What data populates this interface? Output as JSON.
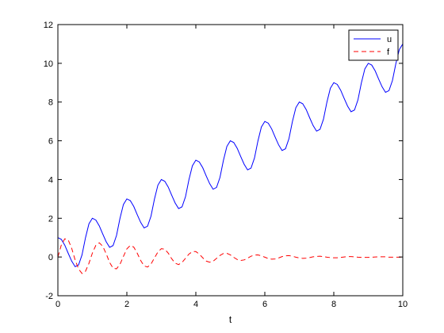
{
  "chart_data": {
    "type": "line",
    "title": "",
    "xlabel": "t",
    "ylabel": "",
    "xlim": [
      0,
      10
    ],
    "ylim": [
      -2,
      12
    ],
    "xticks": [
      0,
      2,
      4,
      6,
      8,
      10
    ],
    "yticks": [
      -2,
      0,
      2,
      4,
      6,
      8,
      10,
      12
    ],
    "grid": false,
    "legend_position": "top-right",
    "series": [
      {
        "name": "u",
        "color": "#0000ff",
        "line_style": "solid",
        "x": [
          0.0,
          0.1,
          0.2,
          0.3,
          0.4,
          0.5,
          0.6,
          0.7,
          0.8,
          0.9,
          1.0,
          1.1,
          1.2,
          1.3,
          1.4,
          1.5,
          1.6,
          1.7,
          1.8,
          1.9,
          2.0,
          2.1,
          2.2,
          2.3,
          2.4,
          2.5,
          2.6,
          2.7,
          2.8,
          2.9,
          3.0,
          3.1,
          3.2,
          3.3,
          3.4,
          3.5,
          3.6,
          3.7,
          3.8,
          3.9,
          4.0,
          4.1,
          4.2,
          4.3,
          4.4,
          4.5,
          4.6,
          4.7,
          4.8,
          4.9,
          5.0,
          5.1,
          5.2,
          5.3,
          5.4,
          5.5,
          5.6,
          5.7,
          5.8,
          5.9,
          6.0,
          6.1,
          6.2,
          6.3,
          6.4,
          6.5,
          6.6,
          6.7,
          6.8,
          6.9,
          7.0,
          7.1,
          7.2,
          7.3,
          7.4,
          7.5,
          7.6,
          7.7,
          7.8,
          7.9,
          8.0,
          8.1,
          8.2,
          8.3,
          8.4,
          8.5,
          8.6,
          8.7,
          8.8,
          8.9,
          9.0,
          9.1,
          9.2,
          9.3,
          9.4,
          9.5,
          9.6,
          9.7,
          9.8,
          9.9,
          10.0
        ],
        "values": [
          1.0,
          0.91,
          0.61,
          0.19,
          -0.21,
          -0.5,
          -0.41,
          0.11,
          0.99,
          1.71,
          2.0,
          1.91,
          1.61,
          1.19,
          0.79,
          0.5,
          0.59,
          1.11,
          1.99,
          2.71,
          3.0,
          2.91,
          2.61,
          2.19,
          1.79,
          1.5,
          1.59,
          2.11,
          2.99,
          3.71,
          4.0,
          3.91,
          3.61,
          3.19,
          2.79,
          2.5,
          2.59,
          3.11,
          3.99,
          4.71,
          5.0,
          4.91,
          4.61,
          4.19,
          3.79,
          3.5,
          3.59,
          4.11,
          4.99,
          5.71,
          6.0,
          5.91,
          5.61,
          5.19,
          4.79,
          4.5,
          4.59,
          5.11,
          5.99,
          6.71,
          7.0,
          6.91,
          6.61,
          6.19,
          5.79,
          5.5,
          5.59,
          6.11,
          6.99,
          7.71,
          8.0,
          7.91,
          7.61,
          7.19,
          6.79,
          6.5,
          6.59,
          7.11,
          7.99,
          8.71,
          9.0,
          8.91,
          8.61,
          8.19,
          7.79,
          7.5,
          7.59,
          8.11,
          8.99,
          9.71,
          10.0,
          9.91,
          9.61,
          9.19,
          8.79,
          8.5,
          8.59,
          9.11,
          9.99,
          10.71,
          11.0
        ]
      },
      {
        "name": "f",
        "color": "#ff0000",
        "line_style": "dashed",
        "x": [
          0.0,
          0.1,
          0.2,
          0.3,
          0.4,
          0.5,
          0.6,
          0.7,
          0.8,
          0.9,
          1.0,
          1.1,
          1.2,
          1.3,
          1.4,
          1.5,
          1.6,
          1.7,
          1.8,
          1.9,
          2.0,
          2.1,
          2.2,
          2.3,
          2.4,
          2.5,
          2.6,
          2.7,
          2.8,
          2.9,
          3.0,
          3.1,
          3.2,
          3.3,
          3.4,
          3.5,
          3.6,
          3.7,
          3.8,
          3.9,
          4.0,
          4.1,
          4.2,
          4.3,
          4.4,
          4.5,
          4.6,
          4.7,
          4.8,
          4.9,
          5.0,
          5.1,
          5.2,
          5.3,
          5.4,
          5.5,
          5.6,
          5.7,
          5.8,
          5.9,
          6.0,
          6.1,
          6.2,
          6.3,
          6.4,
          6.5,
          6.6,
          6.7,
          6.8,
          6.9,
          7.0,
          7.1,
          7.2,
          7.3,
          7.4,
          7.5,
          7.6,
          7.7,
          7.8,
          7.9,
          8.0,
          8.1,
          8.2,
          8.3,
          8.4,
          8.5,
          8.6,
          8.7,
          8.8,
          8.9,
          9.0,
          9.1,
          9.2,
          9.3,
          9.4,
          9.5,
          9.6,
          9.7,
          9.8,
          9.9,
          10.0
        ],
        "values": [
          0.0,
          0.62,
          0.94,
          0.88,
          0.45,
          -0.15,
          -0.62,
          -0.85,
          -0.74,
          -0.33,
          0.2,
          0.6,
          0.73,
          0.56,
          0.17,
          -0.28,
          -0.58,
          -0.61,
          -0.38,
          0.03,
          0.42,
          0.6,
          0.51,
          0.2,
          -0.18,
          -0.46,
          -0.52,
          -0.36,
          -0.05,
          0.26,
          0.43,
          0.4,
          0.2,
          -0.09,
          -0.32,
          -0.39,
          -0.28,
          -0.07,
          0.15,
          0.28,
          0.28,
          0.15,
          -0.04,
          -0.21,
          -0.27,
          -0.22,
          -0.07,
          0.08,
          0.18,
          0.19,
          0.11,
          -0.02,
          -0.13,
          -0.18,
          -0.15,
          -0.06,
          0.04,
          0.1,
          0.11,
          0.06,
          -0.01,
          -0.08,
          -0.11,
          -0.1,
          -0.05,
          0.02,
          0.06,
          0.07,
          0.04,
          -0.01,
          -0.05,
          -0.07,
          -0.06,
          -0.03,
          0.01,
          0.03,
          0.04,
          0.02,
          -0.01,
          -0.03,
          -0.04,
          -0.04,
          -0.02,
          0.0,
          0.02,
          0.02,
          0.01,
          -0.01,
          -0.02,
          -0.02,
          -0.02,
          -0.01,
          0.0,
          0.01,
          0.01,
          0.01,
          -0.01,
          -0.01,
          -0.01,
          -0.01,
          0.0
        ]
      }
    ]
  }
}
